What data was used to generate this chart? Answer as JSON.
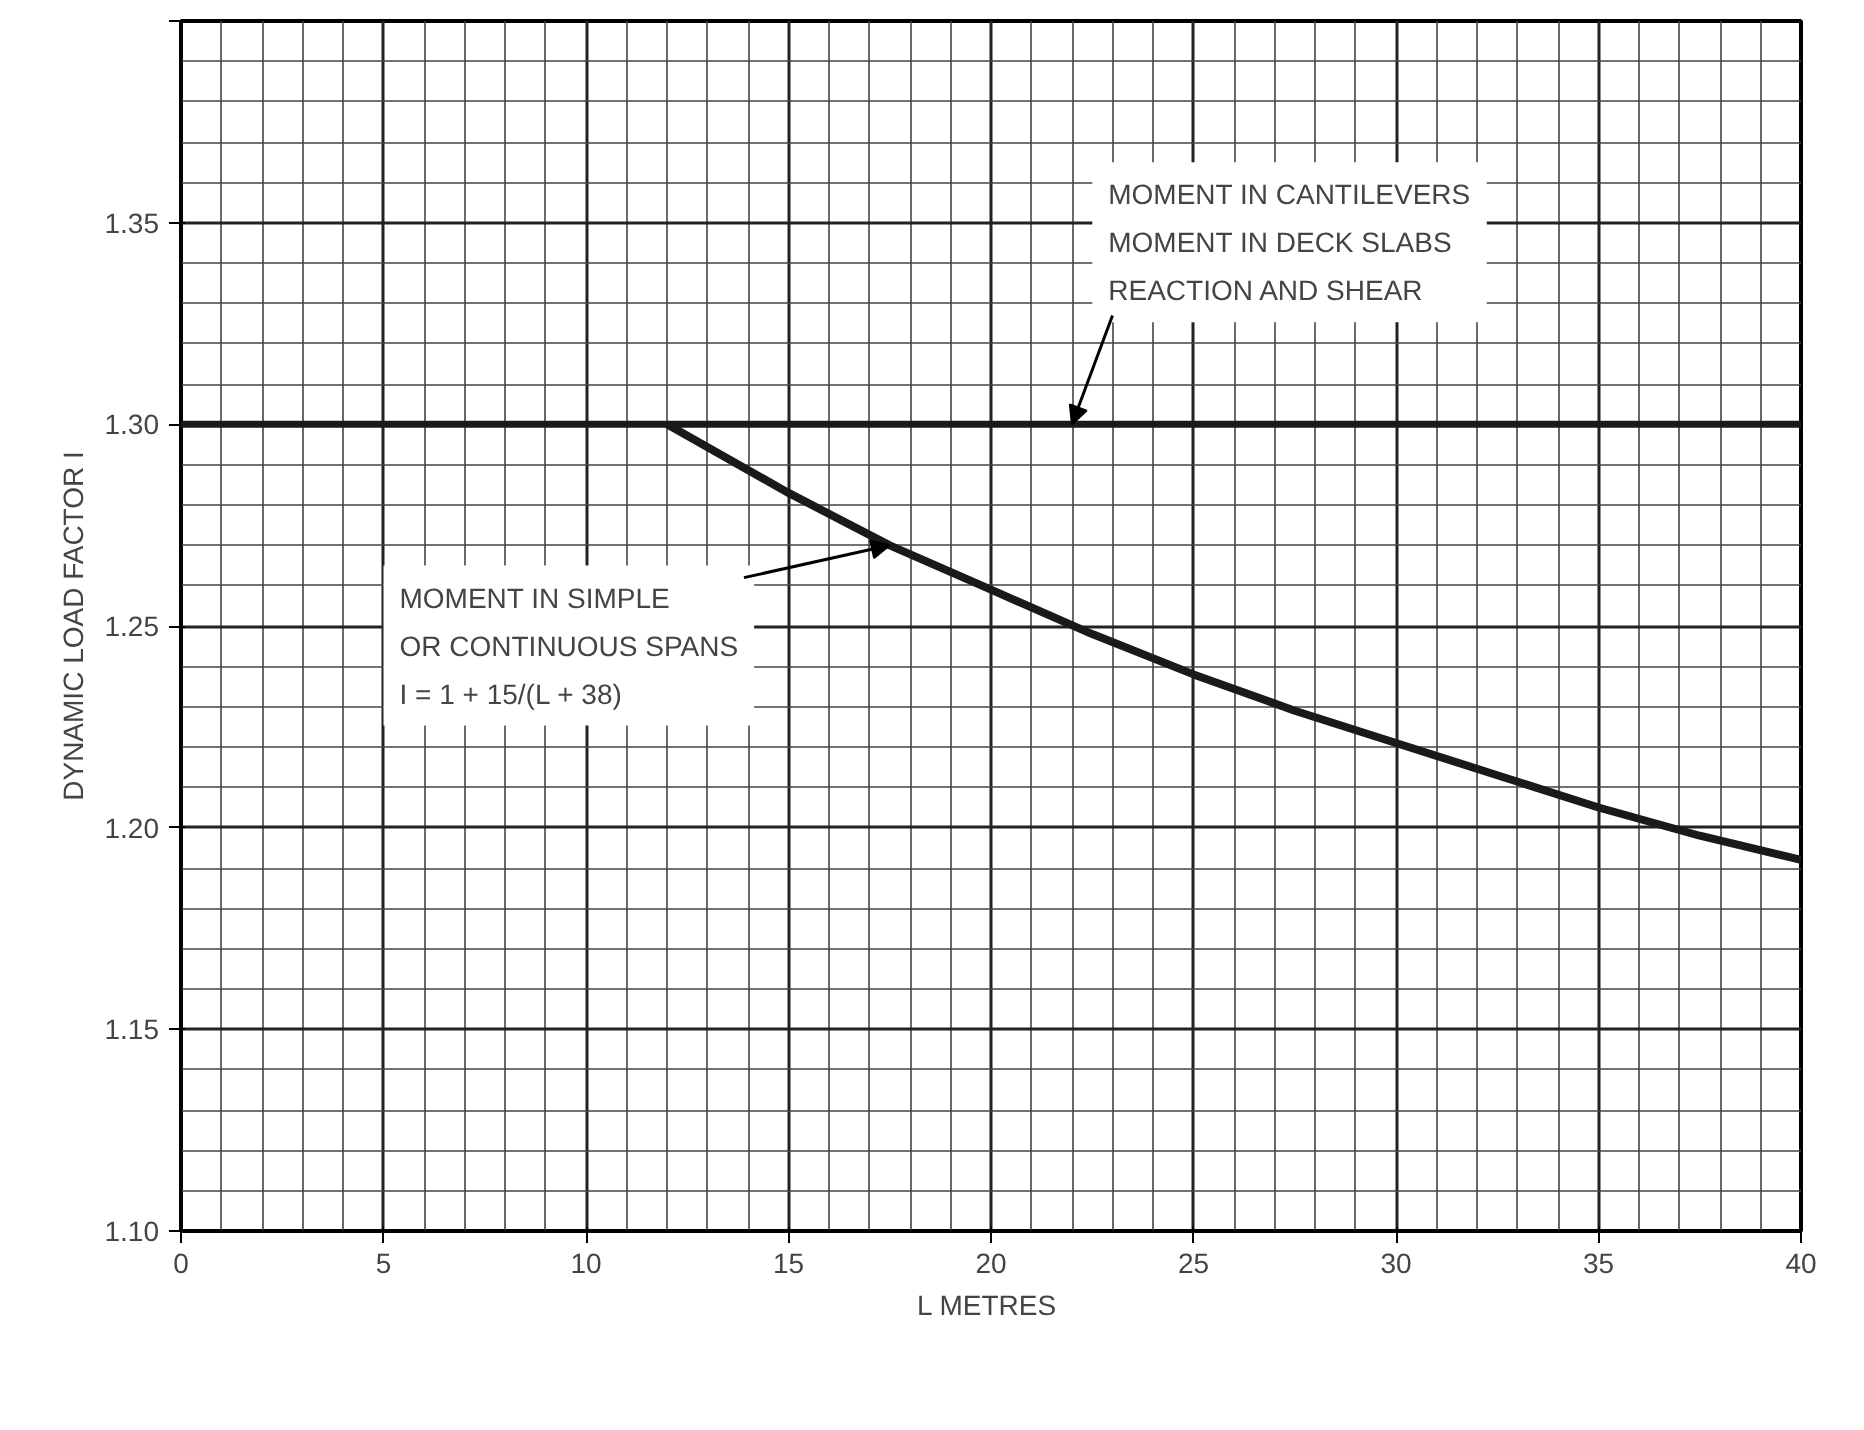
{
  "chart_data": {
    "type": "line",
    "xlabel": "L  METRES",
    "ylabel": "DYNAMIC LOAD FACTOR I",
    "series": [
      {
        "color": "#1a1a1a",
        "x": [
          12,
          15,
          17.5,
          20,
          22.5,
          25,
          27.5,
          30,
          32.5,
          35,
          37.5,
          40
        ],
        "values": [
          1.3,
          1.283,
          1.27,
          1.259,
          1.248,
          1.238,
          1.229,
          1.221,
          1.213,
          1.205,
          1.198,
          1.192
        ]
      }
    ],
    "ref_lines": [
      {
        "axis": "y",
        "value": 1.3,
        "color": "#1a1a1a"
      }
    ],
    "annotations": [
      {
        "text": "MOMENT IN CANTILEVERS\nMOMENT IN DECK SLABS\nREACTION AND SHEAR",
        "x": 22,
        "y": 1.3
      },
      {
        "text": "MOMENT IN SIMPLE\nOR CONTINUOUS SPANS\nI = 1 + 15/(L + 38)",
        "x": 17.5,
        "y": 1.27
      }
    ],
    "xlim": [
      0,
      40
    ],
    "ylim": [
      1.1,
      1.4
    ],
    "xticks": [
      0,
      5,
      10,
      15,
      20,
      25,
      30,
      35,
      40
    ],
    "yticks": [
      {
        "value": 1.1,
        "label": "1.10"
      },
      {
        "value": 1.15,
        "label": "1.15"
      },
      {
        "value": 1.2,
        "label": "1.20"
      },
      {
        "value": 1.25,
        "label": "1.25"
      },
      {
        "value": 1.3,
        "label": "1.30"
      },
      {
        "value": 1.35,
        "label": "1.35"
      },
      {
        "value": 1.4,
        "label": null
      }
    ],
    "grid": true,
    "marker": "none",
    "line_style": "solid"
  }
}
